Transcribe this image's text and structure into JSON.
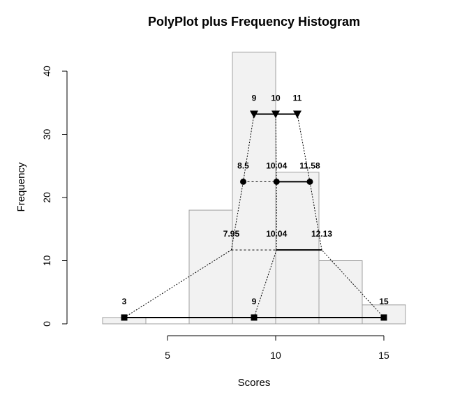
{
  "chart_data": {
    "type": "bar",
    "title": "PolyPlot plus Frequency Histogram",
    "xlabel": "Scores",
    "ylabel": "Frequency",
    "xlim": [
      2,
      16
    ],
    "ylim": [
      0,
      43
    ],
    "x_ticks": [
      5,
      10,
      15
    ],
    "y_ticks": [
      0,
      10,
      20,
      30,
      40
    ],
    "histogram": {
      "bins": [
        {
          "from": 2,
          "to": 4,
          "count": 1
        },
        {
          "from": 4,
          "to": 6,
          "count": 0
        },
        {
          "from": 6,
          "to": 8,
          "count": 18
        },
        {
          "from": 8,
          "to": 10,
          "count": 43
        },
        {
          "from": 10,
          "to": 12,
          "count": 24
        },
        {
          "from": 12,
          "to": 14,
          "count": 10
        },
        {
          "from": 14,
          "to": 16,
          "count": 3
        }
      ],
      "fill": "#f2f2f2",
      "border": "#a0a0a0"
    },
    "levels": [
      {
        "name": "",
        "y": 1,
        "marker": "square",
        "points": [
          {
            "x": 3,
            "label": "3"
          },
          {
            "x": 9,
            "label": "9"
          },
          {
            "x": 15,
            "label": "15"
          }
        ]
      },
      {
        "name": "",
        "y": 11.7,
        "marker": "none",
        "points": [
          {
            "x": 7.95,
            "label": "7.95"
          },
          {
            "x": 10.04,
            "label": "10.04"
          },
          {
            "x": 12.13,
            "label": "12.13"
          }
        ]
      },
      {
        "name": "",
        "y": 22.5,
        "marker": "circle",
        "points": [
          {
            "x": 8.5,
            "label": "8.5"
          },
          {
            "x": 10.04,
            "label": "10.04"
          },
          {
            "x": 11.58,
            "label": "11.58"
          }
        ]
      },
      {
        "name": "",
        "y": 33.2,
        "marker": "triangle-down",
        "points": [
          {
            "x": 9,
            "label": "9"
          },
          {
            "x": 10,
            "label": "10"
          },
          {
            "x": 11,
            "label": "11"
          }
        ]
      }
    ]
  }
}
